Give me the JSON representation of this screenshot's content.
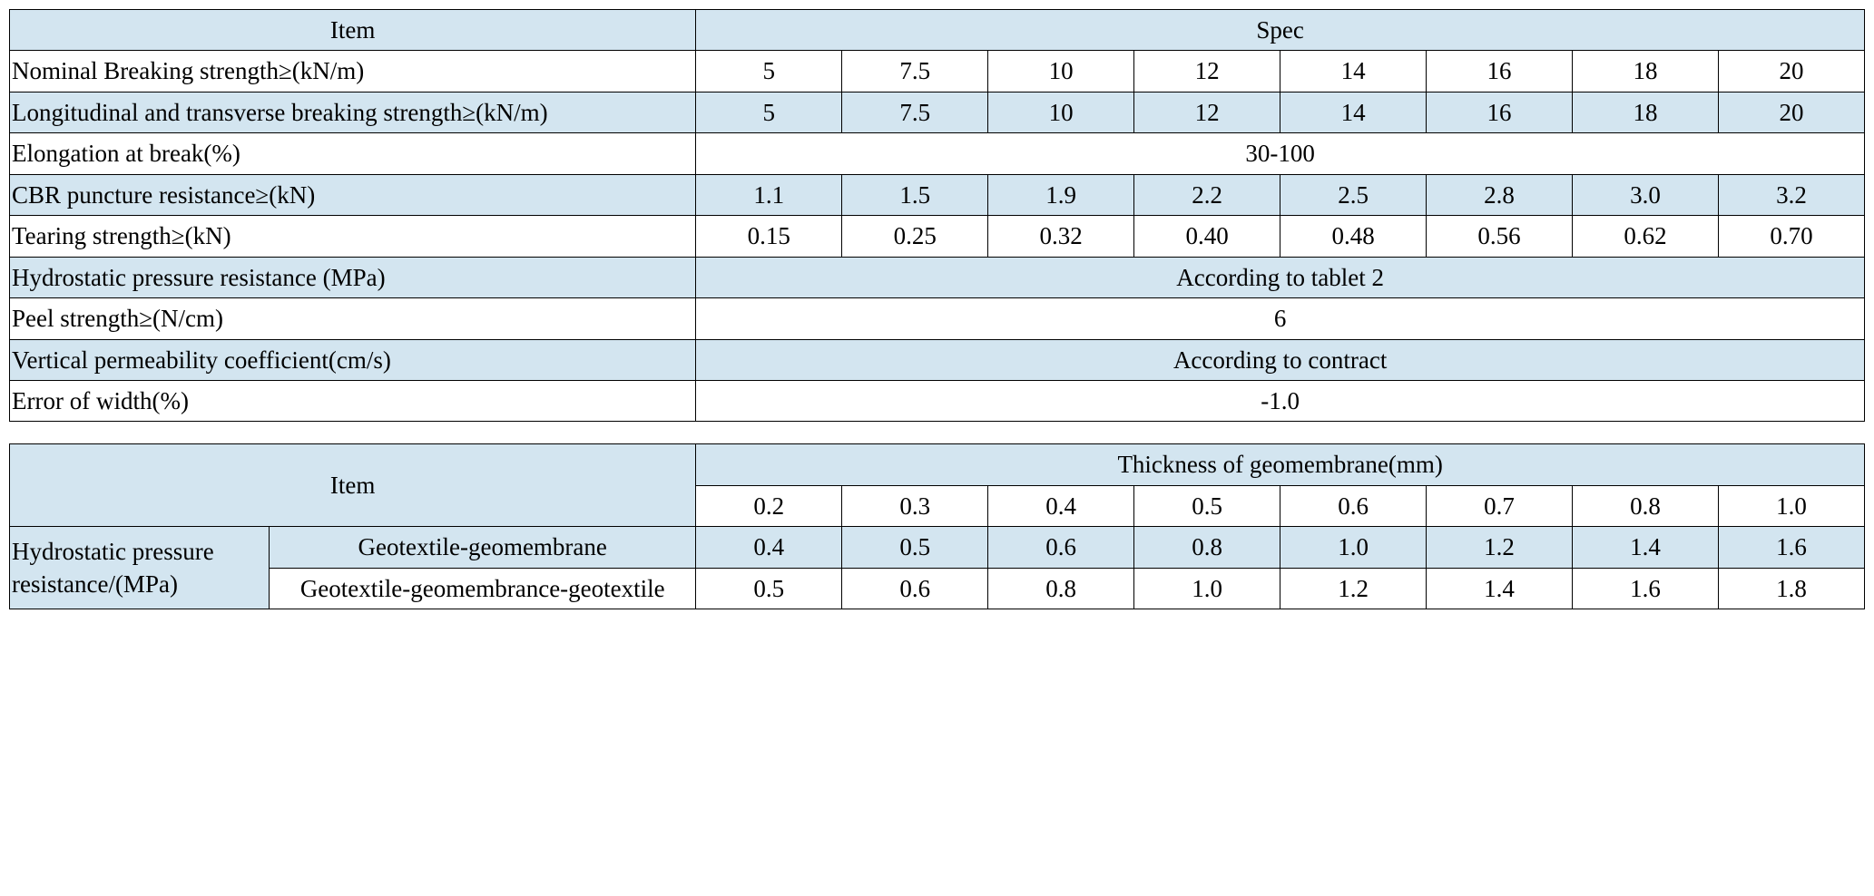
{
  "colors": {
    "header_bg": "#d3e5f0",
    "border": "#000000",
    "text": "#000000",
    "bg": "#ffffff"
  },
  "typography": {
    "font_family": "Times New Roman",
    "font_size_pt": 20
  },
  "table1": {
    "type": "table",
    "header": {
      "item": "Item",
      "spec": "Spec"
    },
    "col_widths_pct": [
      37,
      7.875,
      7.875,
      7.875,
      7.875,
      7.875,
      7.875,
      7.875,
      7.875
    ],
    "rows": [
      {
        "label": "Nominal Breaking strength≥(kN/m)",
        "values": [
          "5",
          "7.5",
          "10",
          "12",
          "14",
          "16",
          "18",
          "20"
        ],
        "span": false,
        "alt": false
      },
      {
        "label": "Longitudinal and transverse breaking strength≥(kN/m)",
        "values": [
          "5",
          "7.5",
          "10",
          "12",
          "14",
          "16",
          "18",
          "20"
        ],
        "span": false,
        "alt": true
      },
      {
        "label": "Elongation at break(%)",
        "values": [
          "30-100"
        ],
        "span": true,
        "alt": false
      },
      {
        "label": "CBR puncture resistance≥(kN)",
        "values": [
          "1.1",
          "1.5",
          "1.9",
          "2.2",
          "2.5",
          "2.8",
          "3.0",
          "3.2"
        ],
        "span": false,
        "alt": true
      },
      {
        "label": "Tearing strength≥(kN)",
        "values": [
          "0.15",
          "0.25",
          "0.32",
          "0.40",
          "0.48",
          "0.56",
          "0.62",
          "0.70"
        ],
        "span": false,
        "alt": false
      },
      {
        "label": "Hydrostatic pressure resistance (MPa)",
        "values": [
          "According to tablet 2"
        ],
        "span": true,
        "alt": true
      },
      {
        "label": "Peel strength≥(N/cm)",
        "values": [
          "6"
        ],
        "span": true,
        "alt": false
      },
      {
        "label": "Vertical permeability coefficient(cm/s)",
        "values": [
          "According to contract"
        ],
        "span": true,
        "alt": true
      },
      {
        "label": "Error of width(%)",
        "values": [
          "-1.0"
        ],
        "span": true,
        "alt": false
      }
    ]
  },
  "table2": {
    "type": "table",
    "header": {
      "item": "Item",
      "thickness": "Thickness of geomembrane(mm)"
    },
    "thickness_values": [
      "0.2",
      "0.3",
      "0.4",
      "0.5",
      "0.6",
      "0.7",
      "0.8",
      "1.0"
    ],
    "row_group_label": "Hydrostatic pressure resistance/(MPa)",
    "col_widths_pct": [
      14,
      23,
      7.875,
      7.875,
      7.875,
      7.875,
      7.875,
      7.875,
      7.875,
      7.875
    ],
    "rows": [
      {
        "label": "Geotextile-geomembrane",
        "values": [
          "0.4",
          "0.5",
          "0.6",
          "0.8",
          "1.0",
          "1.2",
          "1.4",
          "1.6"
        ],
        "alt": true
      },
      {
        "label": "Geotextile-geomembrance-geotextile",
        "values": [
          "0.5",
          "0.6",
          "0.8",
          "1.0",
          "1.2",
          "1.4",
          "1.6",
          "1.8"
        ],
        "alt": false
      }
    ]
  }
}
